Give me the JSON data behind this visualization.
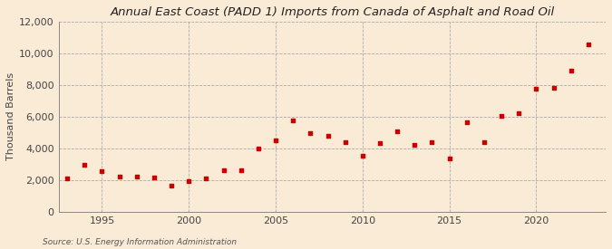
{
  "title": "Annual East Coast (PADD 1) Imports from Canada of Asphalt and Road Oil",
  "ylabel": "Thousand Barrels",
  "source": "Source: U.S. Energy Information Administration",
  "background_color": "#faebd7",
  "plot_background_color": "#faebd7",
  "marker_color": "#cc0000",
  "grid_color": "#aaaaaa",
  "years": [
    1993,
    1994,
    1995,
    1996,
    1997,
    1998,
    1999,
    2000,
    2001,
    2002,
    2003,
    2004,
    2005,
    2006,
    2007,
    2008,
    2009,
    2010,
    2011,
    2012,
    2013,
    2014,
    2015,
    2016,
    2017,
    2018,
    2019,
    2020,
    2021,
    2022,
    2023
  ],
  "values": [
    2100,
    2950,
    2550,
    2200,
    2250,
    2150,
    1650,
    1950,
    2100,
    2600,
    2600,
    4000,
    4500,
    5750,
    4950,
    4800,
    4400,
    3550,
    4350,
    5100,
    4250,
    4400,
    3350,
    5650,
    4400,
    6050,
    6250,
    7750,
    7800,
    8900,
    10550
  ],
  "ylim": [
    0,
    12000
  ],
  "yticks": [
    0,
    2000,
    4000,
    6000,
    8000,
    10000,
    12000
  ],
  "xlim": [
    1992.5,
    2024
  ],
  "xticks": [
    1995,
    2000,
    2005,
    2010,
    2015,
    2020
  ],
  "title_fontsize": 9.5,
  "tick_fontsize": 8,
  "ylabel_fontsize": 8
}
